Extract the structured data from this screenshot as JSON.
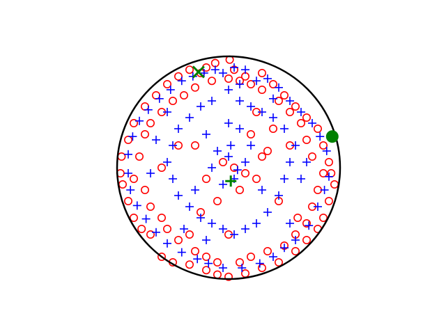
{
  "chart_data": {
    "type": "scatter",
    "axes_visible": false,
    "xlim": [
      -1.1,
      1.1
    ],
    "ylim": [
      -1.1,
      1.1
    ],
    "boundary": {
      "shape": "circle",
      "center": [
        0,
        0
      ],
      "radius": 1.0,
      "color": "#000000"
    },
    "colors": {
      "circle_series": "#ff0000",
      "plus_series": "#0000ff",
      "highlight": "#008000"
    },
    "series": [
      {
        "marker": "circle-open",
        "color": "#ff0000",
        "points": [
          [
            0.01,
            0.97
          ],
          [
            -0.12,
            0.94
          ],
          [
            -0.2,
            0.9
          ],
          [
            -0.25,
            0.85
          ],
          [
            0.05,
            0.88
          ],
          [
            0.15,
            0.82
          ],
          [
            0.3,
            0.85
          ],
          [
            0.4,
            0.75
          ],
          [
            0.5,
            0.65
          ],
          [
            0.6,
            0.55
          ],
          [
            0.7,
            0.45
          ],
          [
            0.8,
            0.35
          ],
          [
            0.85,
            0.2
          ],
          [
            0.9,
            0.05
          ],
          [
            0.92,
            -0.05
          ],
          [
            0.95,
            -0.15
          ],
          [
            0.9,
            -0.3
          ],
          [
            0.85,
            -0.45
          ],
          [
            0.8,
            -0.55
          ],
          [
            0.7,
            -0.65
          ],
          [
            0.6,
            -0.75
          ],
          [
            0.45,
            -0.85
          ],
          [
            0.3,
            -0.9
          ],
          [
            0.15,
            -0.95
          ],
          [
            0.0,
            -0.98
          ],
          [
            -0.1,
            -0.96
          ],
          [
            -0.2,
            -0.92
          ],
          [
            -0.35,
            -0.87
          ],
          [
            -0.5,
            -0.85
          ],
          [
            -0.6,
            -0.8
          ],
          [
            -0.7,
            -0.6
          ],
          [
            -0.78,
            -0.55
          ],
          [
            -0.85,
            -0.45
          ],
          [
            -0.9,
            -0.3
          ],
          [
            -0.95,
            -0.15
          ],
          [
            -0.97,
            -0.05
          ],
          [
            -0.96,
            0.1
          ],
          [
            -0.9,
            0.25
          ],
          [
            -0.85,
            0.4
          ],
          [
            -0.75,
            0.55
          ],
          [
            -0.65,
            0.65
          ],
          [
            -0.55,
            0.75
          ],
          [
            -0.45,
            0.82
          ],
          [
            -0.35,
            0.88
          ],
          [
            -0.5,
            0.6
          ],
          [
            -0.6,
            0.5
          ],
          [
            -0.7,
            0.4
          ],
          [
            -0.75,
            0.3
          ],
          [
            -0.8,
            0.1
          ],
          [
            -0.85,
            -0.1
          ],
          [
            -0.75,
            -0.2
          ],
          [
            -0.7,
            -0.35
          ],
          [
            -0.6,
            -0.45
          ],
          [
            -0.55,
            -0.55
          ],
          [
            -0.45,
            -0.65
          ],
          [
            -0.3,
            -0.75
          ],
          [
            -0.2,
            -0.8
          ],
          [
            -0.1,
            -0.85
          ],
          [
            0.1,
            -0.85
          ],
          [
            0.2,
            -0.8
          ],
          [
            0.35,
            -0.75
          ],
          [
            0.5,
            -0.7
          ],
          [
            0.6,
            -0.6
          ],
          [
            0.7,
            -0.5
          ],
          [
            0.75,
            -0.35
          ],
          [
            0.8,
            -0.2
          ],
          [
            0.85,
            -0.05
          ],
          [
            0.75,
            0.1
          ],
          [
            0.7,
            0.25
          ],
          [
            0.65,
            0.4
          ],
          [
            0.55,
            0.5
          ],
          [
            0.45,
            0.6
          ],
          [
            0.3,
            0.7
          ],
          [
            0.2,
            0.75
          ],
          [
            0.1,
            0.78
          ],
          [
            0.0,
            0.8
          ],
          [
            -0.15,
            0.78
          ],
          [
            -0.3,
            0.72
          ],
          [
            -0.4,
            0.65
          ],
          [
            0.2,
            0.3
          ],
          [
            0.3,
            0.1
          ],
          [
            0.25,
            -0.1
          ],
          [
            0.1,
            -0.2
          ],
          [
            -0.1,
            -0.3
          ],
          [
            -0.2,
            -0.1
          ],
          [
            -0.3,
            0.2
          ],
          [
            0.05,
            0.0
          ],
          [
            0.15,
            -0.05
          ],
          [
            -0.05,
            0.05
          ],
          [
            0.35,
            0.15
          ],
          [
            -0.25,
            -0.4
          ],
          [
            0.45,
            -0.3
          ],
          [
            0.55,
            0.2
          ],
          [
            0.25,
            0.5
          ],
          [
            -0.45,
            0.2
          ],
          [
            -0.6,
            0.0
          ],
          [
            0.4,
            0.35
          ],
          [
            -0.35,
            -0.6
          ],
          [
            0.62,
            -0.45
          ],
          [
            0.0,
            -0.6
          ]
        ]
      },
      {
        "marker": "plus",
        "color": "#0000ff",
        "points": [
          [
            0.05,
            0.9
          ],
          [
            -0.05,
            0.85
          ],
          [
            0.1,
            0.75
          ],
          [
            0.25,
            0.78
          ],
          [
            0.35,
            0.8
          ],
          [
            0.45,
            0.72
          ],
          [
            0.55,
            0.6
          ],
          [
            0.65,
            0.5
          ],
          [
            0.75,
            0.4
          ],
          [
            0.82,
            0.28
          ],
          [
            0.88,
            0.15
          ],
          [
            0.9,
            -0.08
          ],
          [
            0.86,
            -0.2
          ],
          [
            0.8,
            -0.35
          ],
          [
            0.72,
            -0.52
          ],
          [
            0.6,
            -0.65
          ],
          [
            0.5,
            -0.72
          ],
          [
            0.4,
            -0.8
          ],
          [
            0.28,
            -0.86
          ],
          [
            0.12,
            -0.9
          ],
          [
            -0.05,
            -0.9
          ],
          [
            -0.18,
            -0.86
          ],
          [
            -0.28,
            -0.82
          ],
          [
            -0.42,
            -0.76
          ],
          [
            -0.55,
            -0.68
          ],
          [
            -0.65,
            -0.58
          ],
          [
            -0.74,
            -0.46
          ],
          [
            -0.82,
            -0.34
          ],
          [
            -0.88,
            -0.2
          ],
          [
            -0.9,
            -0.05
          ],
          [
            -0.9,
            0.12
          ],
          [
            -0.86,
            0.28
          ],
          [
            -0.8,
            0.42
          ],
          [
            -0.72,
            0.52
          ],
          [
            -0.62,
            0.62
          ],
          [
            -0.52,
            0.7
          ],
          [
            -0.42,
            0.78
          ],
          [
            -0.32,
            0.82
          ],
          [
            -0.22,
            0.85
          ],
          [
            -0.12,
            0.88
          ],
          [
            0.0,
            0.7
          ],
          [
            0.1,
            0.6
          ],
          [
            0.2,
            0.55
          ],
          [
            0.3,
            0.5
          ],
          [
            0.4,
            0.45
          ],
          [
            0.5,
            0.35
          ],
          [
            0.6,
            0.2
          ],
          [
            0.55,
            0.05
          ],
          [
            0.5,
            -0.1
          ],
          [
            0.45,
            -0.25
          ],
          [
            0.35,
            -0.4
          ],
          [
            0.25,
            -0.5
          ],
          [
            0.15,
            -0.55
          ],
          [
            0.05,
            -0.6
          ],
          [
            -0.05,
            -0.55
          ],
          [
            -0.15,
            -0.5
          ],
          [
            -0.25,
            -0.45
          ],
          [
            -0.35,
            -0.35
          ],
          [
            -0.45,
            -0.25
          ],
          [
            -0.5,
            -0.1
          ],
          [
            -0.55,
            0.05
          ],
          [
            -0.5,
            0.2
          ],
          [
            -0.45,
            0.35
          ],
          [
            -0.35,
            0.45
          ],
          [
            -0.25,
            0.55
          ],
          [
            -0.15,
            0.6
          ],
          [
            0.0,
            0.4
          ],
          [
            0.1,
            0.35
          ],
          [
            0.2,
            0.2
          ],
          [
            0.15,
            0.05
          ],
          [
            0.05,
            -0.1
          ],
          [
            -0.05,
            -0.15
          ],
          [
            -0.15,
            0.0
          ],
          [
            -0.1,
            0.15
          ],
          [
            0.0,
            0.1
          ],
          [
            0.08,
            -0.02
          ],
          [
            0.02,
            0.2
          ],
          [
            -0.2,
            0.3
          ],
          [
            0.3,
            -0.2
          ],
          [
            -0.3,
            -0.2
          ],
          [
            0.65,
            -0.1
          ],
          [
            -0.65,
            0.25
          ],
          [
            0.4,
            0.62
          ],
          [
            -0.4,
            -0.55
          ],
          [
            0.15,
            0.88
          ],
          [
            -0.2,
            -0.65
          ],
          [
            0.55,
            -0.5
          ],
          [
            -0.55,
            0.5
          ],
          [
            0.7,
            0.05
          ],
          [
            -0.7,
            -0.05
          ]
        ]
      }
    ],
    "highlights": [
      {
        "marker": "x",
        "color": "#008000",
        "x": -0.27,
        "y": 0.86
      },
      {
        "marker": "filled-circle",
        "color": "#008000",
        "x": 0.93,
        "y": 0.28
      },
      {
        "marker": "plus",
        "color": "#008000",
        "x": 0.02,
        "y": -0.12
      }
    ]
  }
}
